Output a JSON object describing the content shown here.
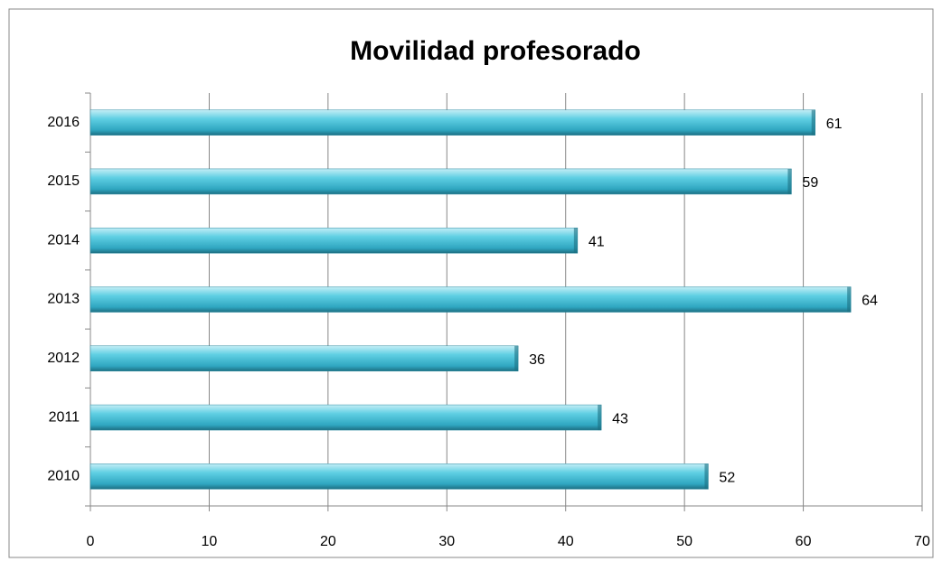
{
  "chart_data": {
    "type": "bar",
    "orientation": "horizontal",
    "title": "Movilidad profesorado",
    "categories": [
      "2010",
      "2011",
      "2012",
      "2013",
      "2014",
      "2015",
      "2016"
    ],
    "values": [
      52,
      43,
      36,
      64,
      41,
      59,
      61
    ],
    "color": "#4bacc6",
    "xlim": [
      0,
      70
    ],
    "xticks": [
      0,
      10,
      20,
      30,
      40,
      50,
      60,
      70
    ],
    "grid": true
  }
}
